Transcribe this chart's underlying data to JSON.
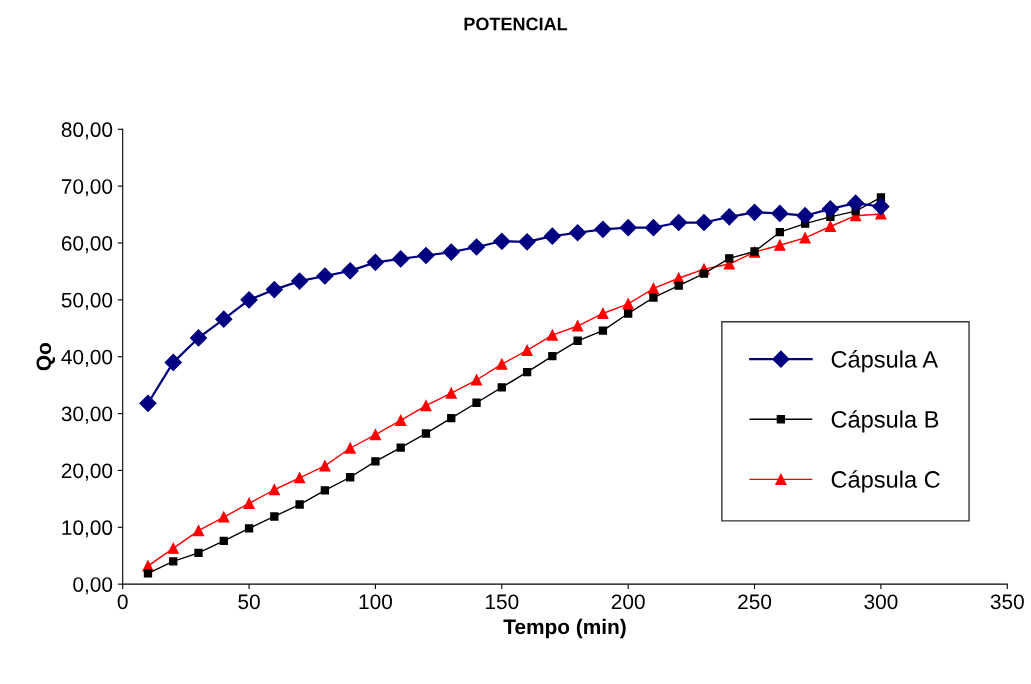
{
  "chart_data": {
    "type": "line",
    "title": "POTENCIAL",
    "xlabel": "Tempo (min)",
    "ylabel": "Qo",
    "x": [
      10,
      20,
      30,
      40,
      50,
      60,
      70,
      80,
      90,
      100,
      110,
      120,
      130,
      140,
      150,
      160,
      170,
      180,
      190,
      200,
      210,
      220,
      230,
      240,
      250,
      260,
      270,
      280,
      290,
      300
    ],
    "series": [
      {
        "name": "Cápsula A",
        "color": "#000080",
        "marker": "diamond",
        "values": [
          31.8,
          39.0,
          43.3,
          46.6,
          50.0,
          51.8,
          53.3,
          54.2,
          55.1,
          56.6,
          57.2,
          57.8,
          58.4,
          59.3,
          60.3,
          60.2,
          61.2,
          61.8,
          62.4,
          62.7,
          62.7,
          63.6,
          63.6,
          64.6,
          65.4,
          65.2,
          64.8,
          66.0,
          67.0,
          66.4
        ]
      },
      {
        "name": "Cápsula B",
        "color": "#000000",
        "marker": "square",
        "values": [
          1.9,
          4.0,
          5.5,
          7.6,
          9.8,
          11.9,
          14.0,
          16.5,
          18.8,
          21.6,
          24.0,
          26.5,
          29.2,
          31.9,
          34.6,
          37.3,
          40.1,
          42.8,
          44.6,
          47.6,
          50.4,
          52.5,
          54.6,
          57.3,
          58.5,
          61.9,
          63.4,
          64.6,
          65.6,
          68.0
        ]
      },
      {
        "name": "Cápsula C",
        "color": "#ff0000",
        "marker": "triangle",
        "values": [
          3.2,
          6.3,
          9.4,
          11.8,
          14.2,
          16.6,
          18.7,
          20.8,
          23.9,
          26.3,
          28.8,
          31.4,
          33.6,
          35.9,
          38.7,
          41.1,
          43.8,
          45.4,
          47.6,
          49.3,
          52.0,
          53.8,
          55.4,
          56.3,
          58.4,
          59.6,
          60.9,
          62.9,
          64.8,
          65.1
        ]
      }
    ],
    "xlim": [
      0,
      350
    ],
    "xticks": [
      0,
      50,
      100,
      150,
      200,
      250,
      300,
      350
    ],
    "ylim": [
      0,
      80
    ],
    "yticks": [
      {
        "value": 0,
        "label": "0,00"
      },
      {
        "value": 10,
        "label": "10,00"
      },
      {
        "value": 20,
        "label": "20,00"
      },
      {
        "value": 30,
        "label": "30,00"
      },
      {
        "value": 40,
        "label": "40,00"
      },
      {
        "value": 50,
        "label": "50,00"
      },
      {
        "value": 60,
        "label": "60,00"
      },
      {
        "value": 70,
        "label": "70,00"
      },
      {
        "value": 80,
        "label": "80,00"
      }
    ],
    "grid": false,
    "legend": "right",
    "line_style": "solid"
  }
}
